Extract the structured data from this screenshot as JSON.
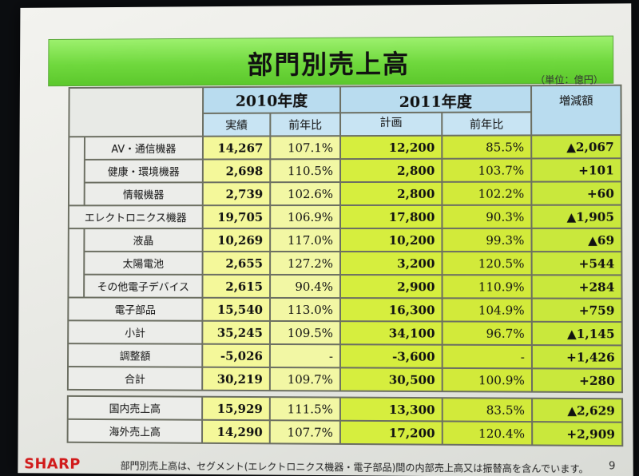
{
  "title": "部門別売上高",
  "unit": "（単位：億円）",
  "headers": {
    "y2010": "2010年度",
    "y2011": "2011年度",
    "actual": "実績",
    "yoy": "前年比",
    "plan": "計画",
    "diff": "増減額"
  },
  "rows": [
    {
      "label": "AV・通信機器",
      "v2010": "14,267",
      "r2010": "107.1%",
      "v2011": "12,200",
      "r2011": "85.5%",
      "diff": "▲2,067"
    },
    {
      "label": "健康・環境機器",
      "v2010": "2,698",
      "r2010": "110.5%",
      "v2011": "2,800",
      "r2011": "103.7%",
      "diff": "+101"
    },
    {
      "label": "情報機器",
      "v2010": "2,739",
      "r2010": "102.6%",
      "v2011": "2,800",
      "r2011": "102.2%",
      "diff": "+60"
    },
    {
      "label": "エレクトロニクス機器",
      "v2010": "19,705",
      "r2010": "106.9%",
      "v2011": "17,800",
      "r2011": "90.3%",
      "diff": "▲1,905"
    },
    {
      "label": "液晶",
      "v2010": "10,269",
      "r2010": "117.0%",
      "v2011": "10,200",
      "r2011": "99.3%",
      "diff": "▲69"
    },
    {
      "label": "太陽電池",
      "v2010": "2,655",
      "r2010": "127.2%",
      "v2011": "3,200",
      "r2011": "120.5%",
      "diff": "+544"
    },
    {
      "label": "その他電子デバイス",
      "v2010": "2,615",
      "r2010": "90.4%",
      "v2011": "2,900",
      "r2011": "110.9%",
      "diff": "+284"
    },
    {
      "label": "電子部品",
      "v2010": "15,540",
      "r2010": "113.0%",
      "v2011": "16,300",
      "r2011": "104.9%",
      "diff": "+759"
    },
    {
      "label": "小計",
      "v2010": "35,245",
      "r2010": "109.5%",
      "v2011": "34,100",
      "r2011": "96.7%",
      "diff": "▲1,145"
    },
    {
      "label": "調整額",
      "v2010": "-5,026",
      "r2010": "-",
      "v2011": "-3,600",
      "r2011": "-",
      "diff": "+1,426"
    },
    {
      "label": "合計",
      "v2010": "30,219",
      "r2010": "109.7%",
      "v2011": "30,500",
      "r2011": "100.9%",
      "diff": "+280"
    }
  ],
  "sub_rows": [
    {
      "label": "国内売上高",
      "v2010": "15,929",
      "r2010": "111.5%",
      "v2011": "13,300",
      "r2011": "83.5%",
      "diff": "▲2,629"
    },
    {
      "label": "海外売上高",
      "v2010": "14,290",
      "r2010": "107.7%",
      "v2011": "17,200",
      "r2011": "120.4%",
      "diff": "+2,909"
    }
  ],
  "footer": {
    "logo": "SHARP",
    "note": "部門別売上高は、セグメント(エレクトロニクス機器・電子部品)間の内部売上高又は振替高を含んでいます。",
    "page": "9"
  }
}
